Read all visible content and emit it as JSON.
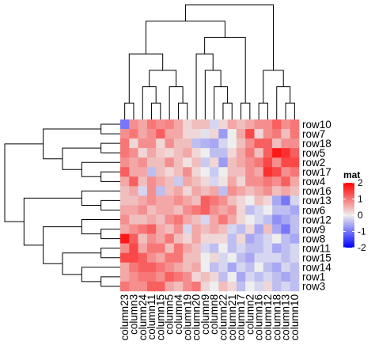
{
  "chart_data": {
    "type": "heatmap",
    "rows": [
      "row10",
      "row7",
      "row18",
      "row5",
      "row2",
      "row17",
      "row4",
      "row16",
      "row13",
      "row6",
      "row12",
      "row9",
      "row8",
      "row11",
      "row15",
      "row14",
      "row1",
      "row3"
    ],
    "columns": [
      "column23",
      "column3",
      "column24",
      "column11",
      "column15",
      "column5",
      "column4",
      "column19",
      "column20",
      "column9",
      "column8",
      "column22",
      "column21",
      "column17",
      "column2",
      "column16",
      "column12",
      "column18",
      "column13",
      "column10"
    ],
    "values": [
      [
        -1.0,
        0.8,
        0.6,
        1.0,
        0.8,
        0.9,
        0.6,
        0.2,
        0.4,
        0.4,
        -0.2,
        0.2,
        0.6,
        0.4,
        0.6,
        0.8,
        0.8,
        1.2,
        0.8,
        1.0
      ],
      [
        0.8,
        1.0,
        0.6,
        0.8,
        1.2,
        0.6,
        0.6,
        0.2,
        0.2,
        -0.1,
        0.2,
        -0.7,
        0.0,
        0.6,
        1.4,
        0.2,
        0.8,
        1.0,
        0.4,
        1.0
      ],
      [
        1.0,
        0.2,
        0.8,
        0.8,
        0.2,
        0.8,
        0.4,
        0.4,
        -0.4,
        -0.5,
        -0.6,
        -0.2,
        0.0,
        0.4,
        0.8,
        1.2,
        1.2,
        0.4,
        0.8,
        0.8
      ],
      [
        1.0,
        0.8,
        0.2,
        0.6,
        0.3,
        0.2,
        0.4,
        0.6,
        0.2,
        0.0,
        -0.4,
        -0.4,
        0.2,
        0.6,
        1.0,
        0.4,
        1.2,
        1.8,
        1.6,
        1.2
      ],
      [
        0.8,
        0.6,
        0.8,
        0.4,
        0.4,
        0.8,
        0.4,
        0.1,
        0.4,
        -0.3,
        0.2,
        -0.7,
        0.4,
        0.6,
        0.8,
        1.0,
        1.4,
        0.8,
        1.4,
        1.4
      ],
      [
        1.2,
        0.6,
        0.6,
        -0.4,
        0.4,
        0.2,
        0.4,
        0.8,
        0.2,
        0.0,
        -0.3,
        0.0,
        0.4,
        0.4,
        0.8,
        0.6,
        1.6,
        1.4,
        0.8,
        1.0
      ],
      [
        0.6,
        1.2,
        0.4,
        0.8,
        0.6,
        0.4,
        -0.3,
        0.6,
        0.4,
        0.2,
        -0.2,
        0.1,
        0.6,
        0.2,
        0.8,
        0.8,
        1.0,
        0.8,
        1.2,
        0.6
      ],
      [
        0.4,
        0.6,
        -0.2,
        0.8,
        -0.4,
        0.4,
        0.6,
        0.2,
        0.6,
        0.4,
        0.6,
        -0.4,
        0.8,
        0.6,
        0.4,
        0.6,
        0.8,
        0.4,
        0.6,
        0.4
      ],
      [
        0.4,
        0.4,
        0.6,
        0.8,
        0.6,
        0.6,
        0.8,
        0.6,
        0.4,
        1.2,
        1.0,
        0.8,
        0.4,
        0.2,
        0.0,
        0.4,
        0.2,
        -0.6,
        -1.0,
        -0.2
      ],
      [
        0.6,
        0.6,
        0.8,
        0.4,
        0.6,
        0.6,
        0.4,
        0.8,
        1.0,
        1.2,
        0.8,
        0.6,
        0.8,
        0.2,
        -0.4,
        -0.2,
        0.0,
        -0.4,
        -0.4,
        -0.6
      ],
      [
        0.8,
        0.4,
        0.4,
        0.6,
        0.4,
        0.8,
        1.0,
        0.6,
        0.4,
        -0.2,
        0.6,
        1.0,
        0.6,
        0.2,
        0.0,
        -0.2,
        -0.4,
        -0.8,
        -0.6,
        -0.4
      ],
      [
        0.6,
        0.8,
        1.0,
        1.2,
        0.6,
        0.4,
        0.8,
        -0.2,
        0.6,
        0.4,
        0.6,
        0.4,
        -0.2,
        -0.4,
        0.2,
        -0.6,
        0.4,
        -0.6,
        -1.0,
        -0.4
      ],
      [
        1.8,
        1.2,
        0.4,
        0.8,
        0.6,
        1.0,
        0.4,
        0.2,
        0.6,
        0.2,
        0.2,
        0.2,
        -0.4,
        0.2,
        -0.6,
        -0.4,
        -0.2,
        0.0,
        -0.4,
        -0.6
      ],
      [
        0.8,
        1.4,
        0.6,
        1.0,
        1.0,
        0.4,
        1.0,
        0.6,
        0.4,
        -0.2,
        -0.4,
        0.0,
        -0.4,
        -0.2,
        -0.4,
        -0.4,
        -0.2,
        -0.6,
        -0.4,
        -0.2
      ],
      [
        1.4,
        1.4,
        1.2,
        0.8,
        0.6,
        1.0,
        1.0,
        0.4,
        0.4,
        0.0,
        0.2,
        -0.2,
        0.0,
        -0.4,
        -0.6,
        -0.2,
        -0.2,
        -0.2,
        -0.4,
        -0.2
      ],
      [
        0.6,
        1.0,
        1.2,
        1.2,
        1.0,
        0.8,
        0.6,
        0.4,
        0.6,
        0.0,
        -0.4,
        -0.2,
        -0.6,
        -0.2,
        -0.4,
        0.0,
        -0.4,
        -0.6,
        -0.2,
        -0.4
      ],
      [
        0.6,
        0.8,
        1.0,
        1.0,
        0.8,
        1.2,
        1.0,
        0.8,
        0.2,
        0.4,
        0.2,
        -0.4,
        0.0,
        -0.6,
        -0.2,
        -0.4,
        -0.2,
        -0.4,
        -0.6,
        -0.4
      ],
      [
        1.0,
        0.8,
        0.8,
        1.2,
        1.2,
        0.6,
        0.4,
        0.8,
        1.0,
        0.2,
        0.0,
        0.4,
        0.2,
        -0.4,
        0.0,
        -0.2,
        0.2,
        -0.4,
        -0.2,
        -0.4
      ]
    ],
    "legend": {
      "title": "mat",
      "ticks": [
        2,
        1,
        0,
        -1,
        -2
      ],
      "colors": {
        "low": "#0000FF",
        "mid": "#EEEEEE",
        "high": "#FF0000"
      },
      "placement": "right"
    }
  }
}
